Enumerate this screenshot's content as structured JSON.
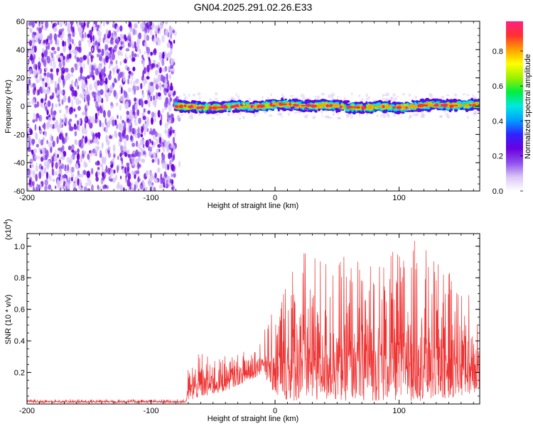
{
  "chart_data": [
    {
      "type": "heatmap",
      "title": "GN04.2025.291.02.26.E33",
      "xlabel": "Height of straight line (km)",
      "ylabel": "Frequency (Hz)",
      "xlim": [
        -200,
        165
      ],
      "ylim": [
        -60,
        60
      ],
      "xticks": [
        -200,
        -100,
        0,
        100
      ],
      "xtick_labels": [
        "-200",
        "-100",
        "0",
        "100"
      ],
      "yticks": [
        -60,
        -40,
        -20,
        0,
        20,
        40,
        60
      ],
      "ytick_labels": [
        "-60",
        "-40",
        "-20",
        "0",
        "20",
        "40",
        "60"
      ],
      "noise_region_x": [
        -200,
        -80
      ],
      "signal_band_center_hz": 0,
      "signal_band_halfwidth_hz": 4,
      "signal_start_x": -80,
      "colorbar": {
        "label": "Normalized spectral amplitude",
        "range": [
          0,
          0.97
        ],
        "ticks": [
          0.0,
          0.2,
          0.4,
          0.6,
          0.8
        ],
        "tick_labels": [
          "0.0",
          "0.2",
          "0.4",
          "0.6",
          "0.8"
        ],
        "colormap": [
          "#ffffff",
          "#d9c6f5",
          "#8f4fee",
          "#6a00e0",
          "#2f23ff",
          "#00a0ff",
          "#00e8e0",
          "#00ee40",
          "#9cf000",
          "#ffff00",
          "#ffa000",
          "#ff3030",
          "#ff2080"
        ]
      }
    },
    {
      "type": "line",
      "xlabel": "Height of straight line (km)",
      "ylabel": "SNR (10 * v/v)",
      "yscale_label": "(x10",
      "yscale_exp": "4",
      "yscale_close": ")",
      "xlim": [
        -200,
        165
      ],
      "ylim": [
        0,
        1.08
      ],
      "xticks": [
        -200,
        -100,
        0,
        100
      ],
      "xtick_labels": [
        "-200",
        "-100",
        "0",
        "100"
      ],
      "yticks": [
        0.2,
        0.4,
        0.6,
        0.8,
        1.0
      ],
      "ytick_labels": [
        "0.2",
        "0.4",
        "0.6",
        "0.8",
        "1.0"
      ],
      "color": "#ee3333",
      "envelope": {
        "x": [
          -200,
          -72,
          -70,
          -60,
          -50,
          -40,
          -30,
          -20,
          -10,
          0,
          10,
          20,
          40,
          60,
          80,
          100,
          115,
          130,
          150,
          165
        ],
        "low": [
          0.008,
          0.008,
          0.02,
          0.04,
          0.06,
          0.08,
          0.12,
          0.15,
          0.2,
          0.05,
          0.02,
          0.02,
          0.02,
          0.02,
          0.02,
          0.02,
          0.02,
          0.02,
          0.05,
          0.08
        ],
        "high": [
          0.03,
          0.03,
          0.24,
          0.33,
          0.3,
          0.32,
          0.33,
          0.35,
          0.45,
          0.62,
          0.85,
          1.0,
          0.95,
          0.93,
          0.92,
          0.98,
          1.06,
          0.9,
          0.78,
          0.65
        ]
      }
    }
  ]
}
